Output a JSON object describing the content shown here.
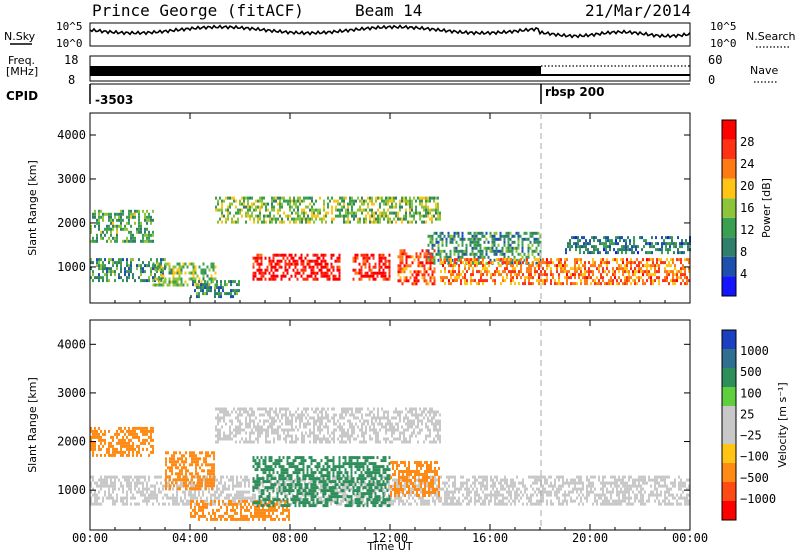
{
  "header": {
    "station": "Prince George (fitACF)",
    "beam": "Beam 14",
    "date": "21/Mar/2014"
  },
  "top_panel": {
    "nsky_label": "N.Sky",
    "nsky_ticks": [
      "10^5",
      "10^0"
    ],
    "nsearch_label": "N.Search",
    "nsearch_ticks": [
      "10^5",
      "10^0"
    ]
  },
  "freq_panel": {
    "freq_label_1": "Freq.",
    "freq_label_2": "[MHz]",
    "freq_ticks": [
      "18",
      "8"
    ],
    "nave_label": "Nave",
    "nave_ticks": [
      "60",
      "0"
    ]
  },
  "cpid_panel": {
    "label": "CPID",
    "values": [
      "-3503",
      "rbsp 200"
    ]
  },
  "power_panel": {
    "ylabel": "Slant Range [km]",
    "yticks": [
      "4000",
      "3000",
      "2000",
      "1000"
    ],
    "colorbar_label": "Power [dB]",
    "colorbar_ticks": [
      "28",
      "24",
      "20",
      "16",
      "12",
      "8",
      "4"
    ],
    "colors": [
      "#1414ff",
      "#1f4fae",
      "#2f7f6a",
      "#3aa050",
      "#8ec43a",
      "#ffc414",
      "#ff7a14",
      "#ff3214",
      "#ff0000"
    ]
  },
  "velocity_panel": {
    "ylabel": "Slant Range [km]",
    "yticks": [
      "4000",
      "3000",
      "2000",
      "1000"
    ],
    "colorbar_label": "Velocity [m s⁻¹]",
    "colorbar_ticks": [
      "1000",
      "500",
      "100",
      "25",
      "−25",
      "−100",
      "−500",
      "−1000"
    ],
    "colors": [
      "#1a3fbf",
      "#2f6f8f",
      "#2f8f5a",
      "#5fcf3f",
      "#c8c8c8",
      "#c8c8c8",
      "#ffc414",
      "#ff8a14",
      "#ff4a14",
      "#ff0000"
    ]
  },
  "x_axis": {
    "ticks": [
      "00:00",
      "04:00",
      "08:00",
      "12:00",
      "16:00",
      "20:00",
      "00:00"
    ],
    "label": "Time UT"
  },
  "chart_data": {
    "type": "heatmap",
    "x_range_hours": [
      0,
      24
    ],
    "y_range_km": [
      180,
      4500
    ],
    "marker_hour": 18,
    "power_regions": [
      {
        "t0": 0.0,
        "t1": 3.0,
        "r0": 700,
        "r1": 1200,
        "db": 10
      },
      {
        "t0": 0.0,
        "t1": 2.5,
        "r0": 1600,
        "r1": 2300,
        "db": 12
      },
      {
        "t0": 2.5,
        "t1": 5.0,
        "r0": 600,
        "r1": 1100,
        "db": 14
      },
      {
        "t0": 4.0,
        "t1": 6.0,
        "r0": 300,
        "r1": 700,
        "db": 10
      },
      {
        "t0": 5.0,
        "t1": 14.0,
        "r0": 2000,
        "r1": 2600,
        "db": 14
      },
      {
        "t0": 6.5,
        "t1": 10.0,
        "r0": 700,
        "r1": 1300,
        "db": 28
      },
      {
        "t0": 10.5,
        "t1": 12.0,
        "r0": 700,
        "r1": 1300,
        "db": 26
      },
      {
        "t0": 12.3,
        "t1": 13.8,
        "r0": 600,
        "r1": 1400,
        "db": 24
      },
      {
        "t0": 13.5,
        "t1": 18.0,
        "r0": 1100,
        "r1": 1800,
        "db": 10
      },
      {
        "t0": 14.0,
        "t1": 24.0,
        "r0": 600,
        "r1": 1200,
        "db": 22
      },
      {
        "t0": 19.0,
        "t1": 24.0,
        "r0": 1300,
        "r1": 1700,
        "db": 8
      }
    ],
    "velocity_regions": [
      {
        "t0": 0.0,
        "t1": 2.5,
        "r0": 1700,
        "r1": 2300,
        "v": -250
      },
      {
        "t0": 0.0,
        "t1": 24.0,
        "r0": 700,
        "r1": 1300,
        "v": 0
      },
      {
        "t0": 3.0,
        "t1": 5.0,
        "r0": 1000,
        "r1": 1800,
        "v": -200
      },
      {
        "t0": 4.0,
        "t1": 8.0,
        "r0": 400,
        "r1": 800,
        "v": -150
      },
      {
        "t0": 5.0,
        "t1": 14.0,
        "r0": 2000,
        "r1": 2700,
        "v": 0
      },
      {
        "t0": 6.5,
        "t1": 12.0,
        "r0": 700,
        "r1": 1700,
        "v": 250
      },
      {
        "t0": 12.0,
        "t1": 14.0,
        "r0": 900,
        "r1": 1600,
        "v": -200
      }
    ]
  }
}
